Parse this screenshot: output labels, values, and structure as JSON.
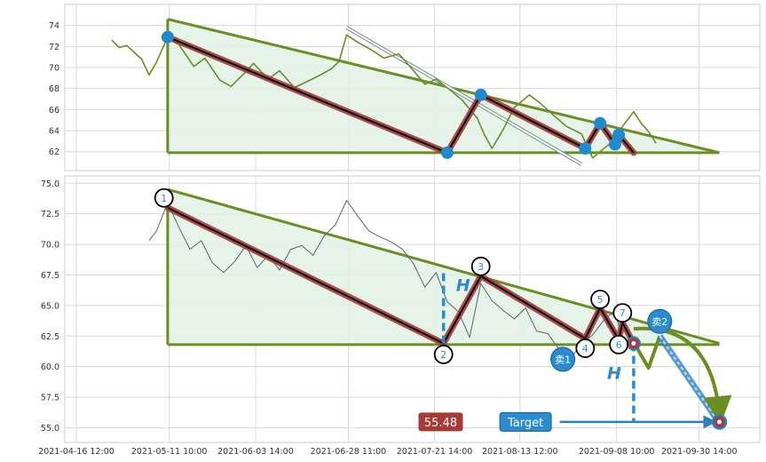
{
  "chart_data": [
    {
      "type": "line",
      "panel": "top",
      "title": "",
      "xlabel": "",
      "ylabel": "",
      "ylim": [
        60.2,
        76
      ],
      "yticks": [
        "62",
        "64",
        "66",
        "68",
        "70",
        "72",
        "74"
      ],
      "grid": true,
      "series": [
        {
          "type": "line",
          "color": "#6b8e23",
          "x": [
            "2021-04-26",
            "2021-04-28",
            "2021-04-30",
            "2021-05-04",
            "2021-05-06",
            "2021-05-08",
            "2021-05-11",
            "2021-05-14",
            "2021-05-18",
            "2021-05-21",
            "2021-05-25",
            "2021-05-28",
            "2021-06-01",
            "2021-06-03",
            "2021-06-07",
            "2021-06-10",
            "2021-06-14",
            "2021-06-17",
            "2021-06-21",
            "2021-06-24",
            "2021-06-26",
            "2021-06-28",
            "2021-07-01",
            "2021-07-05",
            "2021-07-08",
            "2021-07-12",
            "2021-07-15",
            "2021-07-19",
            "2021-07-22",
            "2021-07-26",
            "2021-07-29",
            "2021-08-02",
            "2021-08-04",
            "2021-08-06",
            "2021-08-09",
            "2021-08-12",
            "2021-08-16",
            "2021-08-19",
            "2021-08-23",
            "2021-08-26",
            "2021-08-30",
            "2021-09-02",
            "2021-09-05",
            "2021-09-08",
            "2021-09-10",
            "2021-09-13",
            "2021-09-15",
            "2021-09-17",
            "2021-09-19"
          ],
          "y": [
            72.6,
            71.9,
            72.1,
            70.8,
            69.3,
            70.5,
            72.9,
            72.2,
            70.1,
            70.9,
            68.8,
            68.2,
            69.6,
            70.4,
            68.9,
            69.7,
            68.1,
            68.6,
            69.3,
            69.9,
            70.6,
            73.1,
            72.4,
            71.6,
            70.9,
            71.3,
            70.1,
            68.4,
            68.9,
            67.8,
            66.9,
            65.2,
            63.6,
            62.3,
            64.1,
            66.2,
            67.4,
            66.6,
            65.3,
            64.4,
            63.7,
            61.4,
            62.3,
            63.1,
            64.4,
            65.8,
            64.7,
            63.9,
            62.8
          ]
        }
      ],
      "pattern": {
        "color": "#6b8e23",
        "fill": "#e3f2e6",
        "upper_line": [
          [
            "2021-05-11",
            74.6
          ],
          [
            "2021-10-06",
            61.9
          ]
        ],
        "lower_line": [
          [
            "2021-05-11",
            61.9
          ],
          [
            "2021-10-06",
            61.9
          ]
        ],
        "left_edge": [
          [
            "2021-05-11",
            74.6
          ],
          [
            "2021-05-11",
            61.9
          ]
        ]
      },
      "zigzag": {
        "color": "#a83a3a",
        "inner_color": "#111111",
        "points": [
          [
            "2021-05-11",
            72.9
          ],
          [
            "2021-07-25",
            61.9
          ],
          [
            "2021-08-03",
            67.4
          ],
          [
            "2021-08-31",
            62.3
          ],
          [
            "2021-09-04",
            64.7
          ],
          [
            "2021-09-08",
            62.7
          ],
          [
            "2021-09-09",
            63.6
          ],
          [
            "2021-09-13",
            61.9
          ]
        ],
        "markers": [
          [
            "2021-05-11",
            72.9
          ],
          [
            "2021-07-25",
            61.9
          ],
          [
            "2021-08-03",
            67.4
          ],
          [
            "2021-08-31",
            62.3
          ],
          [
            "2021-09-04",
            64.7
          ],
          [
            "2021-09-08",
            62.7
          ],
          [
            "2021-09-09",
            63.6
          ]
        ],
        "marker_color": "#1f8bcc"
      },
      "channel": [
        [
          "2021-06-28",
          73.8
        ],
        [
          "2021-08-30",
          60.8
        ]
      ]
    },
    {
      "type": "line",
      "panel": "bottom",
      "title": "",
      "xlabel": "",
      "ylabel": "",
      "ylim": [
        53.8,
        75.6
      ],
      "yticks": [
        "55.0",
        "57.5",
        "60.0",
        "62.5",
        "65.0",
        "67.5",
        "70.0",
        "72.5",
        "75.0"
      ],
      "xticks": [
        "2021-04-16 12:00",
        "2021-05-11 10:00",
        "2021-06-03 14:00",
        "2021-06-28 11:00",
        "2021-07-21 14:00",
        "2021-08-13 12:00",
        "2021-09-08 10:00",
        "2021-09-30 14:00"
      ],
      "grid": true,
      "series": [
        {
          "type": "line",
          "color": "#5a6473",
          "x": [
            "2021-05-06",
            "2021-05-08",
            "2021-05-11",
            "2021-05-14",
            "2021-05-17",
            "2021-05-20",
            "2021-05-23",
            "2021-05-26",
            "2021-05-29",
            "2021-06-01",
            "2021-06-04",
            "2021-06-07",
            "2021-06-10",
            "2021-06-13",
            "2021-06-16",
            "2021-06-19",
            "2021-06-22",
            "2021-06-25",
            "2021-06-28",
            "2021-07-01",
            "2021-07-04",
            "2021-07-07",
            "2021-07-10",
            "2021-07-13",
            "2021-07-16",
            "2021-07-19",
            "2021-07-22",
            "2021-07-25",
            "2021-07-28",
            "2021-07-31",
            "2021-08-03",
            "2021-08-06",
            "2021-08-09",
            "2021-08-12",
            "2021-08-15",
            "2021-08-18",
            "2021-08-21",
            "2021-08-24",
            "2021-08-27",
            "2021-08-30",
            "2021-09-02",
            "2021-09-05",
            "2021-09-08",
            "2021-09-10"
          ],
          "y": [
            70.3,
            71.1,
            73.4,
            71.4,
            69.6,
            70.3,
            68.5,
            67.7,
            68.6,
            69.9,
            68.1,
            69.1,
            67.9,
            69.6,
            69.9,
            69.1,
            70.7,
            71.6,
            73.6,
            72.3,
            71.1,
            70.6,
            70.2,
            69.6,
            68.4,
            66.5,
            67.7,
            65.3,
            64.5,
            62.4,
            66.8,
            65.4,
            64.6,
            63.9,
            64.8,
            62.9,
            62.7,
            61.4,
            60.7,
            61.8,
            62.6,
            63.8,
            64.6,
            62.1
          ]
        }
      ],
      "pattern": {
        "color": "#6b8e23",
        "fill": "#e3f2e6",
        "upper_line": [
          [
            "2021-05-11",
            74.5
          ],
          [
            "2021-10-06",
            61.9
          ]
        ],
        "lower_line": [
          [
            "2021-05-11",
            61.8
          ],
          [
            "2021-10-06",
            61.8
          ]
        ],
        "left_edge": [
          [
            "2021-05-11",
            74.5
          ],
          [
            "2021-05-11",
            61.8
          ]
        ]
      },
      "zigzag": {
        "color": "#a83a3a",
        "inner_color": "#111111",
        "points": [
          [
            "2021-05-11",
            73.0
          ],
          [
            "2021-07-24",
            61.9
          ],
          [
            "2021-08-03",
            67.4
          ],
          [
            "2021-08-31",
            62.3
          ],
          [
            "2021-09-04",
            64.8
          ],
          [
            "2021-09-09",
            62.2
          ],
          [
            "2021-09-10",
            63.6
          ],
          [
            "2021-09-13",
            61.9
          ]
        ]
      },
      "pivot_labels": [
        {
          "label": "1",
          "x": "2021-05-10",
          "y": 73.8
        },
        {
          "label": "2",
          "x": "2021-07-24",
          "y": 61.0
        },
        {
          "label": "3",
          "x": "2021-08-03",
          "y": 68.2
        },
        {
          "label": "4",
          "x": "2021-08-31",
          "y": 61.5
        },
        {
          "label": "5",
          "x": "2021-09-04",
          "y": 65.5
        },
        {
          "label": "6",
          "x": "2021-09-09",
          "y": 61.8
        },
        {
          "label": "7",
          "x": "2021-09-10",
          "y": 64.4
        }
      ],
      "height_markers": [
        {
          "label": "H",
          "x": "2021-07-24",
          "from": 61.9,
          "to": 67.9,
          "label_y": 66.7
        },
        {
          "label": "H",
          "x": "2021-09-13",
          "from": 61.9,
          "to": 55.4,
          "label_y": 59.5
        }
      ],
      "breakout_point": {
        "x": "2021-09-13",
        "y": 61.9,
        "color": "#a83a3a"
      },
      "sell_points": [
        {
          "label": "卖1",
          "x": "2021-08-25",
          "y": 60.6
        },
        {
          "label": "卖2",
          "x": "2021-09-20",
          "y": 63.7
        }
      ],
      "projection": {
        "path": [
          [
            "2021-09-13",
            62.0
          ],
          [
            "2021-09-17",
            59.9
          ],
          [
            "2021-09-20",
            62.5
          ],
          [
            "2021-10-06",
            55.4
          ]
        ],
        "color": "#6b8e23"
      },
      "target": {
        "label": "Target",
        "value_label": "55.48",
        "value": 55.48,
        "x": "2021-10-06",
        "arrow_from": "2021-08-23"
      }
    }
  ]
}
